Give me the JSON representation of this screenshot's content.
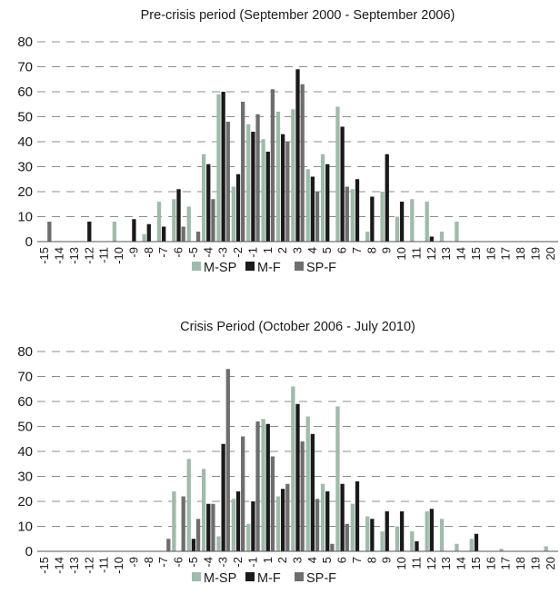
{
  "colors": {
    "M-SP": "#9dbcaa",
    "M-F": "#1a1a1a",
    "SP-F": "#6e6e6e"
  },
  "chart_data": [
    {
      "type": "bar",
      "title": "Pre-crisis period (September 2000 - September 2006)",
      "xlabel": "",
      "ylabel": "",
      "ylim": [
        0,
        80
      ],
      "yticks": [
        "0",
        "10",
        "20",
        "30",
        "40",
        "50",
        "60",
        "70",
        "80"
      ],
      "grid": true,
      "legend_position": "bottom",
      "categories": [
        "-15",
        "-14",
        "-13",
        "-12",
        "-11",
        "-10",
        "-9",
        "-8",
        "-7",
        "-6",
        "-5",
        "-4",
        "-3",
        "-2",
        "-1",
        "1",
        "2",
        "3",
        "4",
        "5",
        "6",
        "7",
        "8",
        "9",
        "10",
        "11",
        "12",
        "13",
        "14",
        "15",
        "16",
        "17",
        "18",
        "19",
        "20"
      ],
      "series": [
        {
          "name": "M-SP",
          "values": [
            0,
            0,
            0,
            0,
            0,
            8,
            0,
            3,
            16,
            17,
            14,
            35,
            59,
            22,
            47,
            41,
            52,
            53,
            29,
            35,
            54,
            21,
            4,
            20,
            10,
            17,
            16,
            4,
            8,
            0,
            0,
            0,
            0,
            0,
            0
          ]
        },
        {
          "name": "M-F",
          "values": [
            0,
            0,
            0,
            8,
            0,
            0,
            9,
            7,
            6,
            21,
            0,
            31,
            60,
            27,
            44,
            36,
            43,
            69,
            26,
            31,
            46,
            25,
            18,
            35,
            16,
            0,
            2,
            0,
            0,
            0,
            0,
            0,
            0,
            0,
            0
          ]
        },
        {
          "name": "SP-F",
          "values": [
            8,
            0,
            0,
            0,
            0,
            0,
            0,
            0,
            0,
            6,
            4,
            17,
            48,
            56,
            51,
            61,
            40,
            63,
            20,
            0,
            22,
            0,
            0,
            0,
            0,
            0,
            0,
            0,
            0,
            0,
            0,
            0,
            0,
            0,
            0
          ]
        }
      ]
    },
    {
      "type": "bar",
      "title": "Crisis Period (October 2006 - July 2010)",
      "xlabel": "",
      "ylabel": "",
      "ylim": [
        0,
        80
      ],
      "yticks": [
        "0",
        "10",
        "20",
        "30",
        "40",
        "50",
        "60",
        "70",
        "80"
      ],
      "grid": true,
      "legend_position": "bottom",
      "categories": [
        "-15",
        "-14",
        "-13",
        "-12",
        "-11",
        "-10",
        "-9",
        "-8",
        "-7",
        "-6",
        "-5",
        "-4",
        "-3",
        "-2",
        "-1",
        "1",
        "2",
        "3",
        "4",
        "5",
        "6",
        "7",
        "8",
        "9",
        "10",
        "11",
        "12",
        "13",
        "14",
        "15",
        "16",
        "17",
        "18",
        "19",
        "20"
      ],
      "series": [
        {
          "name": "M-SP",
          "values": [
            0,
            0,
            0,
            0,
            0,
            0,
            0,
            0,
            0,
            24,
            37,
            33,
            6,
            21,
            11,
            53,
            22,
            66,
            54,
            27,
            58,
            19,
            14,
            8,
            10,
            8,
            16,
            13,
            3,
            5,
            0,
            1,
            0,
            0,
            2
          ]
        },
        {
          "name": "M-F",
          "values": [
            0,
            0,
            0,
            0,
            0,
            0,
            0,
            0,
            0,
            0,
            5,
            19,
            43,
            24,
            20,
            51,
            25,
            59,
            47,
            24,
            27,
            28,
            13,
            16,
            16,
            4,
            17,
            0,
            0,
            7,
            0,
            0,
            0,
            0,
            0
          ]
        },
        {
          "name": "SP-F",
          "values": [
            0,
            0,
            0,
            0,
            0,
            0,
            0,
            0,
            5,
            22,
            13,
            19,
            73,
            46,
            52,
            38,
            27,
            44,
            21,
            3,
            11,
            0,
            0,
            0,
            0,
            0,
            0,
            0,
            0,
            0,
            0,
            0,
            0,
            0,
            0
          ]
        }
      ]
    }
  ]
}
